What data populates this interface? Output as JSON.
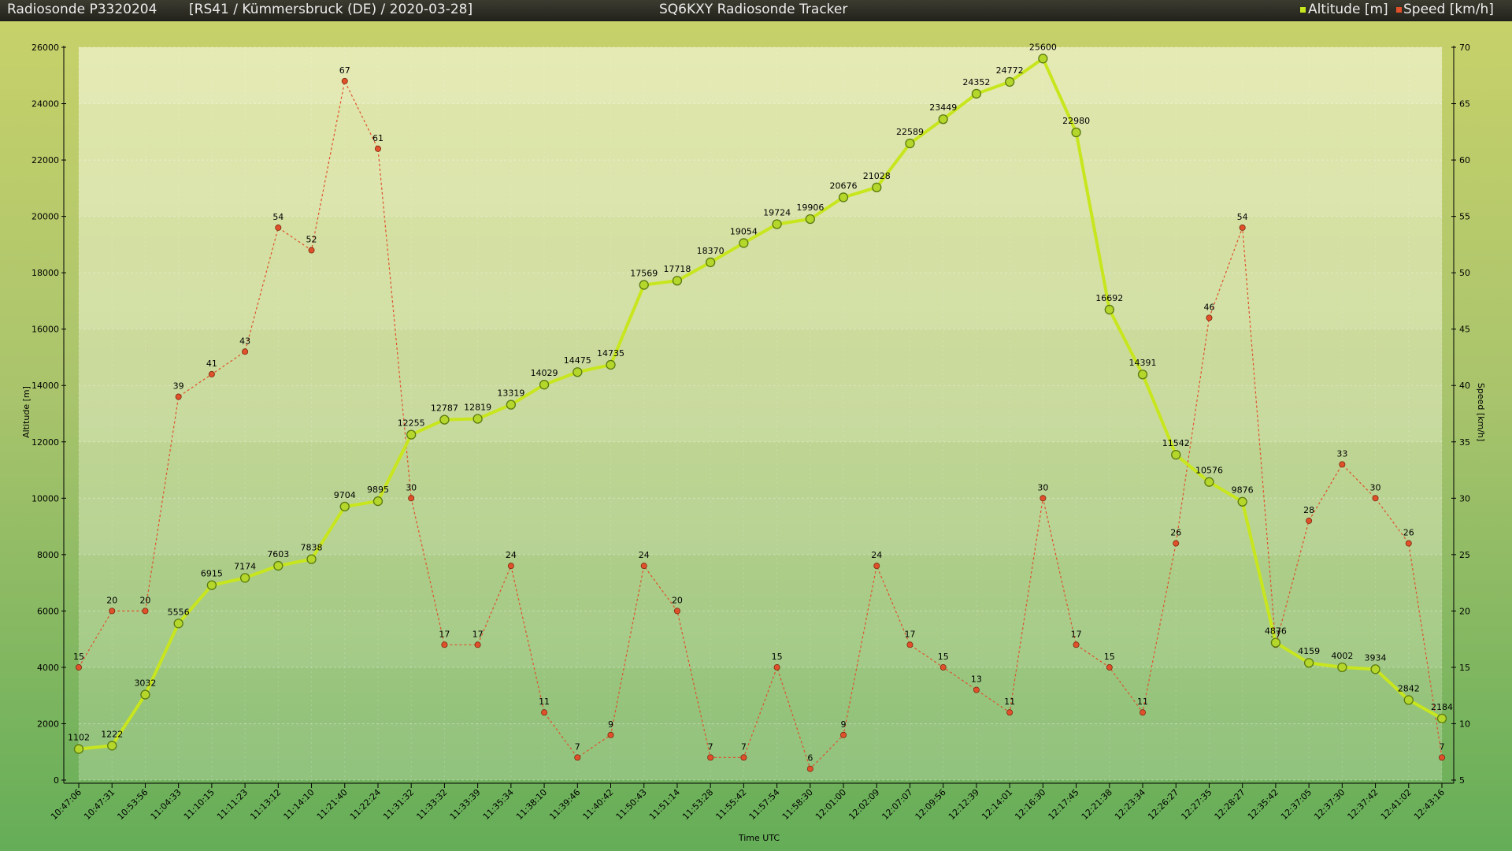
{
  "header": {
    "sonde": "Radiosonde P3320204",
    "info": "[RS41 / Kümmersbruck (DE) / 2020-03-28]",
    "app_title": "SQ6KXY Radiosonde Tracker",
    "legend_altitude": "Altitude [m]",
    "legend_speed": "Speed [km/h]"
  },
  "colors": {
    "altitude": "#c8e61e",
    "speed": "#e0502a"
  },
  "chart_data": {
    "type": "line",
    "xlabel": "Time UTC",
    "ylabel": "Altitude [m]",
    "y2label": "Speed [km/h]",
    "ylim": [
      0,
      26000
    ],
    "y2lim": [
      5,
      70
    ],
    "grid": true,
    "legend": "top-right",
    "x": [
      "10:47:06",
      "10:47:31",
      "10:53:56",
      "11:04:33",
      "11:10:15",
      "11:11:23",
      "11:13:12",
      "11:14:10",
      "11:21:40",
      "11:22:24",
      "11:31:32",
      "11:33:32",
      "11:33:39",
      "11:35:34",
      "11:38:10",
      "11:39:46",
      "11:40:42",
      "11:50:43",
      "11:51:14",
      "11:53:28",
      "11:55:42",
      "11:57:54",
      "11:58:30",
      "12:01:00",
      "12:02:09",
      "12:07:07",
      "12:09:56",
      "12:12:39",
      "12:14:01",
      "12:16:30",
      "12:17:45",
      "12:21:38",
      "12:23:34",
      "12:26:27",
      "12:27:35",
      "12:28:27",
      "12:35:42",
      "12:37:05",
      "12:37:30",
      "12:37:42",
      "12:41:02",
      "12:43:16"
    ],
    "series": [
      {
        "name": "Altitude [m]",
        "axis": "left",
        "values": [
          1102,
          1222,
          3032,
          5556,
          6915,
          7174,
          7603,
          7838,
          9704,
          9895,
          12255,
          12787,
          12819,
          13319,
          14029,
          14475,
          14735,
          17569,
          17718,
          18370,
          19054,
          19724,
          19906,
          20676,
          21028,
          22589,
          23449,
          24352,
          24772,
          25600,
          22980,
          16692,
          14391,
          11542,
          10576,
          9876,
          4876,
          4159,
          4002,
          3934,
          2842,
          2184
        ]
      },
      {
        "name": "Speed [km/h]",
        "axis": "right",
        "values": [
          15,
          20,
          20,
          39,
          41,
          43,
          54,
          52,
          67,
          61,
          30,
          17,
          17,
          24,
          11,
          7,
          9,
          24,
          20,
          7,
          7,
          15,
          6,
          9,
          24,
          17,
          15,
          13,
          11,
          30,
          17,
          15,
          11,
          26,
          46,
          54,
          17,
          28,
          33,
          30,
          26,
          7
        ]
      }
    ]
  }
}
